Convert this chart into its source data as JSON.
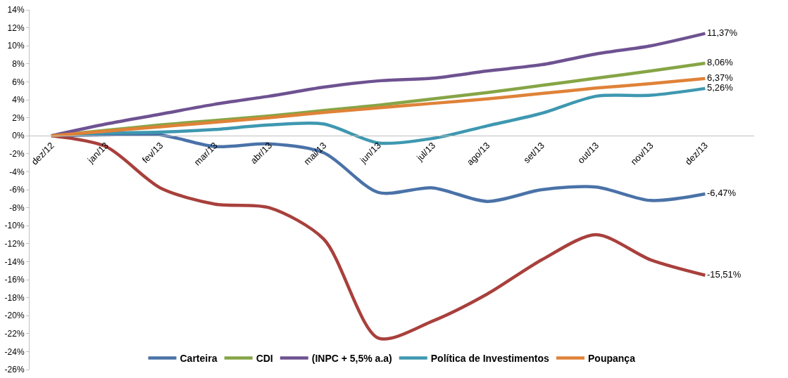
{
  "chart_data": {
    "type": "line",
    "categories": [
      "dez/12",
      "jan/13",
      "fev/13",
      "mar/13",
      "abr/13",
      "mai/13",
      "jun/13",
      "jul/13",
      "ago/13",
      "set/13",
      "out/13",
      "nov/13",
      "dez/13"
    ],
    "series": [
      {
        "name": "Carteira",
        "color": "#4a72a8",
        "values": [
          0,
          0.1,
          0.1,
          -1.2,
          -0.9,
          -1.9,
          -6.3,
          -5.8,
          -7.3,
          -6.0,
          -5.7,
          -7.2,
          -6.47
        ],
        "value_labels": [
          null,
          null,
          null,
          null,
          null,
          null,
          null,
          null,
          null,
          null,
          null,
          null,
          "-6,47%"
        ]
      },
      {
        "color": "#a8403c",
        "values": [
          0,
          -1.2,
          -5.8,
          -7.6,
          -8.0,
          -11.5,
          -22.5,
          -20.6,
          -17.6,
          -13.8,
          -11.0,
          -13.8,
          -15.51
        ],
        "value_labels": [
          null,
          null,
          null,
          null,
          null,
          null,
          null,
          null,
          null,
          null,
          null,
          null,
          "-15,51%"
        ]
      },
      {
        "name": "CDI",
        "color": "#86a546",
        "values": [
          0,
          0.6,
          1.2,
          1.7,
          2.2,
          2.8,
          3.4,
          4.1,
          4.8,
          5.6,
          6.4,
          7.2,
          8.06
        ],
        "value_labels": [
          null,
          null,
          null,
          null,
          null,
          null,
          null,
          null,
          null,
          null,
          null,
          null,
          "8,06%"
        ]
      },
      {
        "name": "(INPC + 5,5% a.a)",
        "color": "#6e5291",
        "values": [
          0,
          1.3,
          2.4,
          3.5,
          4.4,
          5.4,
          6.1,
          6.4,
          7.2,
          7.9,
          9.1,
          10.0,
          11.37
        ],
        "value_labels": [
          null,
          null,
          null,
          null,
          null,
          null,
          null,
          null,
          null,
          null,
          null,
          null,
          "11,37%"
        ]
      },
      {
        "name": "Política de Investimentos",
        "color": "#3e98b0",
        "values": [
          0,
          0.3,
          0.4,
          0.7,
          1.2,
          1.3,
          -0.8,
          -0.3,
          1.1,
          2.5,
          4.4,
          4.5,
          5.26
        ],
        "value_labels": [
          null,
          null,
          null,
          null,
          null,
          null,
          null,
          null,
          null,
          null,
          null,
          null,
          "5,26%"
        ]
      },
      {
        "name": "Poupança",
        "color": "#df8238",
        "values": [
          0,
          0.5,
          1.0,
          1.5,
          2.0,
          2.6,
          3.1,
          3.6,
          4.1,
          4.7,
          5.3,
          5.8,
          6.37
        ],
        "value_labels": [
          null,
          null,
          null,
          null,
          null,
          null,
          null,
          null,
          null,
          null,
          null,
          null,
          "6,37%"
        ]
      }
    ],
    "ylim": [
      -26,
      14
    ],
    "yticks": [
      {
        "value": -26,
        "label": "-26%"
      },
      {
        "value": -24,
        "label": "-24%"
      },
      {
        "value": -22,
        "label": "-22%"
      },
      {
        "value": -20,
        "label": "-20%"
      },
      {
        "value": -18,
        "label": "-18%"
      },
      {
        "value": -16,
        "label": "-16%"
      },
      {
        "value": -14,
        "label": "-14%"
      },
      {
        "value": -12,
        "label": "-12%"
      },
      {
        "value": -10,
        "label": "-10%"
      },
      {
        "value": -8,
        "label": "-8%"
      },
      {
        "value": -6,
        "label": "-6%"
      },
      {
        "value": -4,
        "label": "-4%"
      },
      {
        "value": -2,
        "label": "-2%"
      },
      {
        "value": 0,
        "label": "0%"
      },
      {
        "value": 2,
        "label": "2%"
      },
      {
        "value": 4,
        "label": "4%"
      },
      {
        "value": 6,
        "label": "6%"
      },
      {
        "value": 8,
        "label": "8%"
      },
      {
        "value": 10,
        "label": "10%"
      },
      {
        "value": 12,
        "label": "12%"
      },
      {
        "value": 14,
        "label": "14%"
      }
    ],
    "grid": false,
    "legend": "bottom",
    "marker": "none",
    "line_style": "solid"
  }
}
